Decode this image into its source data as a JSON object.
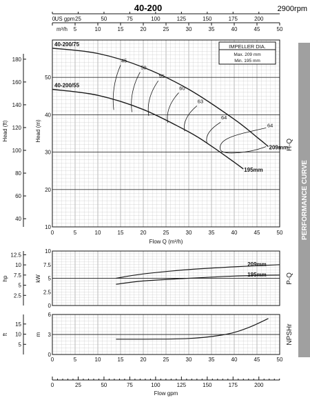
{
  "header": {
    "model": "40-200",
    "speed": "2900rpm"
  },
  "side_panel_label": "PERFORMANCE CURVE",
  "impeller_box": {
    "title": "IMPELLER DIA.",
    "max": "Max.  209  mm",
    "min": "Min.   195  mm"
  },
  "colors": {
    "curve": "#1a1a1a",
    "grid": "#bdbdbd",
    "panel": "#a0a0a0"
  },
  "chart_data": [
    {
      "type": "line",
      "name": "H-Q",
      "ylabel_left": "Head (ft)",
      "ylabel_right": "Head (m)",
      "side_label": "H-Q",
      "xlabel": "Flow Q (m³/h)",
      "top_axis_label_usgpm": "US gpm",
      "top_axis_label_m3h": "m³/h",
      "xlim": [
        0,
        50
      ],
      "ylim": [
        10,
        60
      ],
      "x_ticks": [
        0,
        5,
        10,
        15,
        20,
        25,
        30,
        35,
        40,
        45,
        50
      ],
      "y_ticks_m": [
        10,
        20,
        30,
        40,
        50
      ],
      "y_ticks_ft": [
        40,
        60,
        80,
        100,
        120,
        140,
        160,
        180
      ],
      "top_ticks_usgpm": [
        0,
        25,
        50,
        75,
        100,
        125,
        150,
        175,
        200
      ],
      "series": [
        {
          "name": "209mm",
          "label_left": "40-200/75",
          "x": [
            0,
            10,
            20,
            30,
            40,
            45,
            47.5
          ],
          "y": [
            57.8,
            56.4,
            52.7,
            46.8,
            38.8,
            34.0,
            31.5
          ]
        },
        {
          "name": "195mm",
          "label_left": "40-200/55",
          "x": [
            0,
            10,
            20,
            30,
            35,
            40,
            42
          ],
          "y": [
            46.8,
            45.2,
            41.4,
            35.4,
            31.6,
            27.3,
            25.5
          ]
        }
      ],
      "efficiency_labels": [
        "45",
        "50",
        "55",
        "60",
        "63",
        "64",
        "64"
      ]
    },
    {
      "type": "line",
      "name": "P-Q",
      "ylabel_left": "hp",
      "ylabel_right": "kW",
      "side_label": "P-Q",
      "xlim": [
        0,
        50
      ],
      "ylim": [
        0,
        10
      ],
      "y_ticks_kw": [
        0,
        2.5,
        5,
        7.5,
        10
      ],
      "y_ticks_hp": [
        2.5,
        5,
        7.5,
        10,
        12.5
      ],
      "series": [
        {
          "name": "209mm",
          "x": [
            14,
            20,
            30,
            40,
            50
          ],
          "y": [
            5.0,
            5.8,
            6.6,
            7.1,
            7.5
          ]
        },
        {
          "name": "195mm",
          "x": [
            14,
            20,
            30,
            40,
            50
          ],
          "y": [
            3.9,
            4.5,
            5.0,
            5.4,
            5.6
          ]
        }
      ]
    },
    {
      "type": "line",
      "name": "NPSHr",
      "ylabel_left": "ft",
      "ylabel_right": "m",
      "side_label": "NPSHr",
      "xlim": [
        0,
        50
      ],
      "ylim": [
        0,
        6
      ],
      "y_ticks_m": [
        0,
        3,
        6
      ],
      "y_ticks_ft": [
        5,
        10,
        15
      ],
      "series": [
        {
          "name": "NPSHr",
          "x": [
            14,
            20,
            30,
            38,
            43,
            47.5
          ],
          "y": [
            2.3,
            2.3,
            2.4,
            3.0,
            4.0,
            5.4
          ]
        }
      ]
    },
    {
      "type": "axis",
      "name": "Flow gpm",
      "xlabel": "Flow gpm",
      "ticks": [
        0,
        25,
        50,
        75,
        100,
        125,
        150,
        175,
        200
      ]
    }
  ]
}
